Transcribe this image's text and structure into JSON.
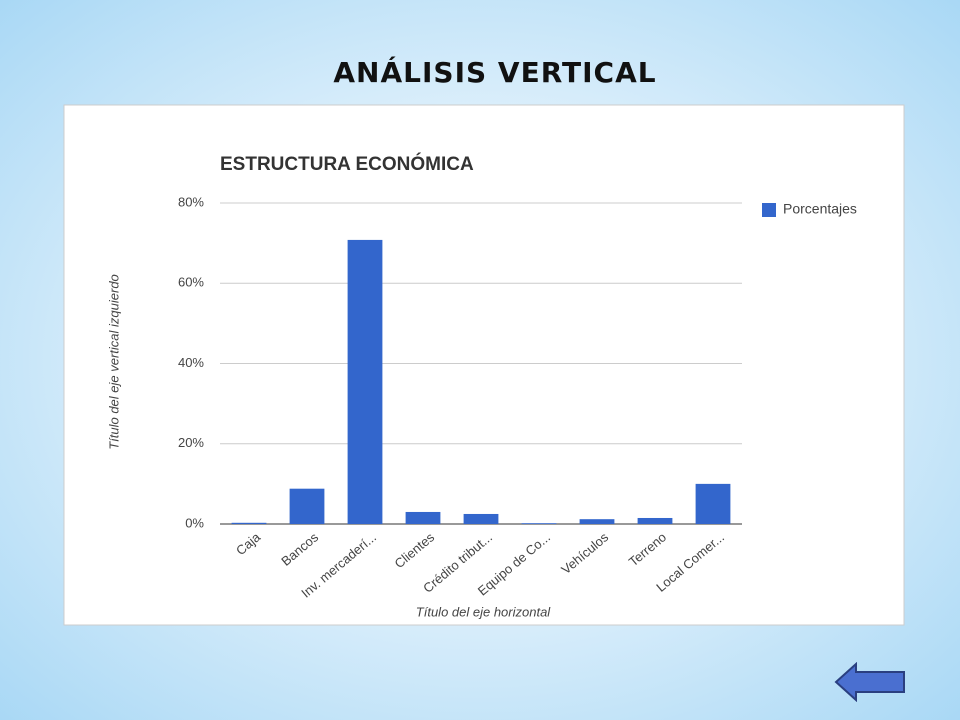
{
  "slide_title": "ANÁLISIS VERTICAL",
  "chart_data": {
    "type": "bar",
    "title": "ESTRUCTURA ECONÓMICA",
    "x_label": "Título del eje horizontal",
    "y_label": "Título del eje vertical izquierdo",
    "categories": [
      "Caja",
      "Bancos",
      "Inv. mercaderí...",
      "Clientes",
      "Crédito tribut...",
      "Equipo de Co...",
      "Vehículos",
      "Terreno",
      "Local Comer..."
    ],
    "series": [
      {
        "name": "Porcentajes",
        "color": "#3366cc",
        "values": [
          0.3,
          8.8,
          70.8,
          3.0,
          2.5,
          0.2,
          1.2,
          1.5,
          10.0
        ]
      }
    ],
    "ylim": [
      0,
      80
    ],
    "yticks": [
      {
        "value": 0,
        "label": "0%"
      },
      {
        "value": 20,
        "label": "20%"
      },
      {
        "value": 40,
        "label": "40%"
      },
      {
        "value": 60,
        "label": "60%"
      },
      {
        "value": 80,
        "label": "80%"
      }
    ],
    "grid": true,
    "legend": "right"
  }
}
